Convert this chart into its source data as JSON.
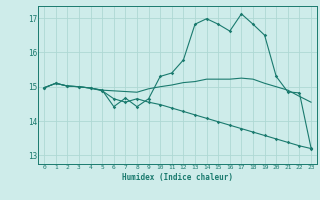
{
  "xlabel": "Humidex (Indice chaleur)",
  "bg_color": "#ceecea",
  "line_color": "#1a7a6e",
  "grid_color": "#aed8d4",
  "xlim": [
    -0.5,
    23.5
  ],
  "ylim": [
    12.75,
    17.35
  ],
  "yticks": [
    13,
    14,
    15,
    16,
    17
  ],
  "xticks": [
    0,
    1,
    2,
    3,
    4,
    5,
    6,
    7,
    8,
    9,
    10,
    11,
    12,
    13,
    14,
    15,
    16,
    17,
    18,
    19,
    20,
    21,
    22,
    23
  ],
  "line1_x": [
    0,
    1,
    2,
    3,
    4,
    5,
    6,
    7,
    8,
    9,
    10,
    11,
    12,
    13,
    14,
    15,
    16,
    17,
    18,
    19,
    20,
    21,
    22,
    23
  ],
  "line1_y": [
    14.97,
    15.1,
    15.02,
    15.0,
    14.96,
    14.9,
    14.42,
    14.67,
    14.42,
    14.65,
    15.3,
    15.4,
    15.78,
    16.82,
    16.98,
    16.82,
    16.62,
    17.12,
    16.82,
    16.5,
    15.3,
    14.85,
    14.82,
    13.22
  ],
  "line2_x": [
    0,
    1,
    2,
    3,
    4,
    5,
    6,
    7,
    8,
    9,
    10,
    11,
    12,
    13,
    14,
    15,
    16,
    17,
    18,
    19,
    20,
    21,
    22,
    23
  ],
  "line2_y": [
    14.97,
    15.1,
    15.02,
    15.0,
    14.96,
    14.9,
    14.88,
    14.86,
    14.84,
    14.94,
    15.0,
    15.05,
    15.12,
    15.15,
    15.22,
    15.22,
    15.22,
    15.25,
    15.22,
    15.1,
    15.0,
    14.9,
    14.72,
    14.55
  ],
  "line3_x": [
    0,
    1,
    2,
    3,
    4,
    5,
    6,
    7,
    8,
    9,
    10,
    11,
    12,
    13,
    14,
    15,
    16,
    17,
    18,
    19,
    20,
    21,
    22,
    23
  ],
  "line3_y": [
    14.97,
    15.1,
    15.02,
    15.0,
    14.96,
    14.88,
    14.65,
    14.55,
    14.65,
    14.55,
    14.48,
    14.38,
    14.28,
    14.18,
    14.08,
    13.98,
    13.88,
    13.78,
    13.68,
    13.58,
    13.48,
    13.38,
    13.28,
    13.2
  ]
}
